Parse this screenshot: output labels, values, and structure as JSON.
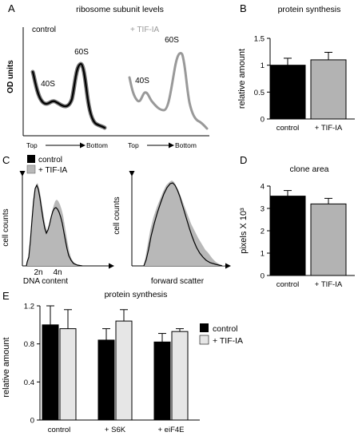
{
  "colors": {
    "control": "#000000",
    "tif": "#b3b3b3",
    "tif_light": "#e6e6e6",
    "hist_fill": "#b8b8b8"
  },
  "panels": {
    "A": {
      "letter": "A",
      "title": "ribosome subunit levels",
      "ylabel": "OD units",
      "control_label": "control",
      "tif_label": "+ TIF-IA",
      "peak_40s": "40S",
      "peak_60s": "60S",
      "top_label": "Top",
      "bottom_label": "Bottom"
    },
    "B": {
      "letter": "B"
    },
    "C": {
      "letter": "C",
      "legend": [
        "control",
        "+ TIF-IA"
      ],
      "hist1": {
        "ylabel": "cell counts",
        "tick_2n": "2n",
        "tick_4n": "4n",
        "xlabel": "DNA content"
      },
      "hist2": {
        "ylabel": "cell counts",
        "xlabel": "forward scatter"
      }
    },
    "D": {
      "letter": "D"
    },
    "E": {
      "letter": "E"
    }
  },
  "chart_data": [
    {
      "panel": "B",
      "type": "bar",
      "title": "protein synthesis",
      "ylabel": "relative amount",
      "categories": [
        "control",
        "+ TIF-IA"
      ],
      "values": [
        1.0,
        1.1
      ],
      "errors": [
        0.13,
        0.14
      ],
      "ylim": [
        0,
        1.5
      ],
      "yticks": [
        0,
        0.5,
        1,
        1.5
      ],
      "ytick_labels": [
        "0",
        "0.5",
        "1",
        "1.5"
      ]
    },
    {
      "panel": "D",
      "type": "bar",
      "title": "clone area",
      "ylabel": "pixels X 10³",
      "categories": [
        "control",
        "+ TIF-IA"
      ],
      "values": [
        3.55,
        3.2
      ],
      "errors": [
        0.25,
        0.25
      ],
      "ylim": [
        0,
        4
      ],
      "yticks": [
        0,
        1,
        2,
        3,
        4
      ],
      "ytick_labels": [
        "0",
        "1",
        "2",
        "3",
        "4"
      ]
    },
    {
      "panel": "E",
      "type": "bar",
      "title": "protein synthesis",
      "ylabel": "relative amount",
      "categories": [
        "control",
        "+ S6K",
        "+ eiF4E"
      ],
      "series": [
        {
          "name": "control",
          "values": [
            1.0,
            0.84,
            0.82
          ],
          "errors": [
            0.2,
            0.12,
            0.09
          ]
        },
        {
          "name": "+ TIF-IA",
          "values": [
            0.96,
            1.04,
            0.93
          ],
          "errors": [
            0.2,
            0.12,
            0.03
          ]
        }
      ],
      "ylim": [
        0,
        1.2
      ],
      "yticks": [
        0,
        0.4,
        0.8,
        1.2
      ],
      "ytick_labels": [
        "0",
        "0.4",
        "0.8",
        "1.2"
      ]
    }
  ]
}
